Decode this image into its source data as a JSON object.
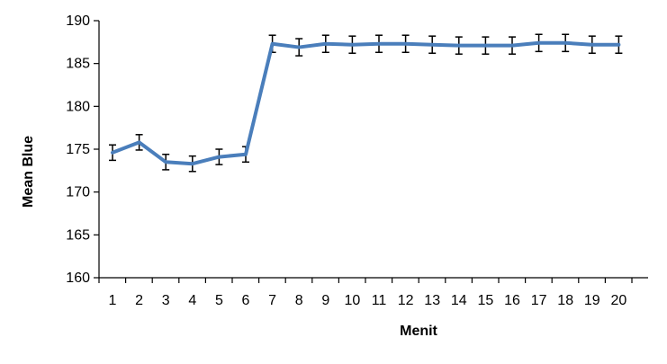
{
  "chart_data": {
    "type": "line",
    "title": "",
    "xlabel": "Menit",
    "ylabel": "Mean Blue",
    "x": [
      "1",
      "2",
      "3",
      "4",
      "5",
      "6",
      "7",
      "8",
      "9",
      "10",
      "11",
      "12",
      "13",
      "14",
      "15",
      "16",
      "17",
      "18",
      "19",
      "20"
    ],
    "series": [
      {
        "values": [
          174.6,
          175.8,
          173.5,
          173.3,
          174.1,
          174.4,
          187.3,
          186.9,
          187.3,
          187.2,
          187.3,
          187.3,
          187.2,
          187.1,
          187.1,
          187.1,
          187.4,
          187.4,
          187.2,
          187.2
        ],
        "error": [
          0.9,
          0.9,
          0.9,
          0.9,
          0.9,
          0.9,
          1.0,
          1.0,
          1.0,
          1.0,
          1.0,
          1.0,
          1.0,
          1.0,
          1.0,
          1.0,
          1.0,
          1.0,
          1.0,
          1.0
        ]
      }
    ],
    "ylim": [
      160,
      190
    ],
    "yticks": [
      160,
      165,
      170,
      175,
      180,
      185,
      190
    ],
    "grid": false,
    "legend": "none",
    "colors": {
      "line": "#4a7ebb",
      "error_bar": "#000000",
      "axis": "#000000"
    }
  }
}
